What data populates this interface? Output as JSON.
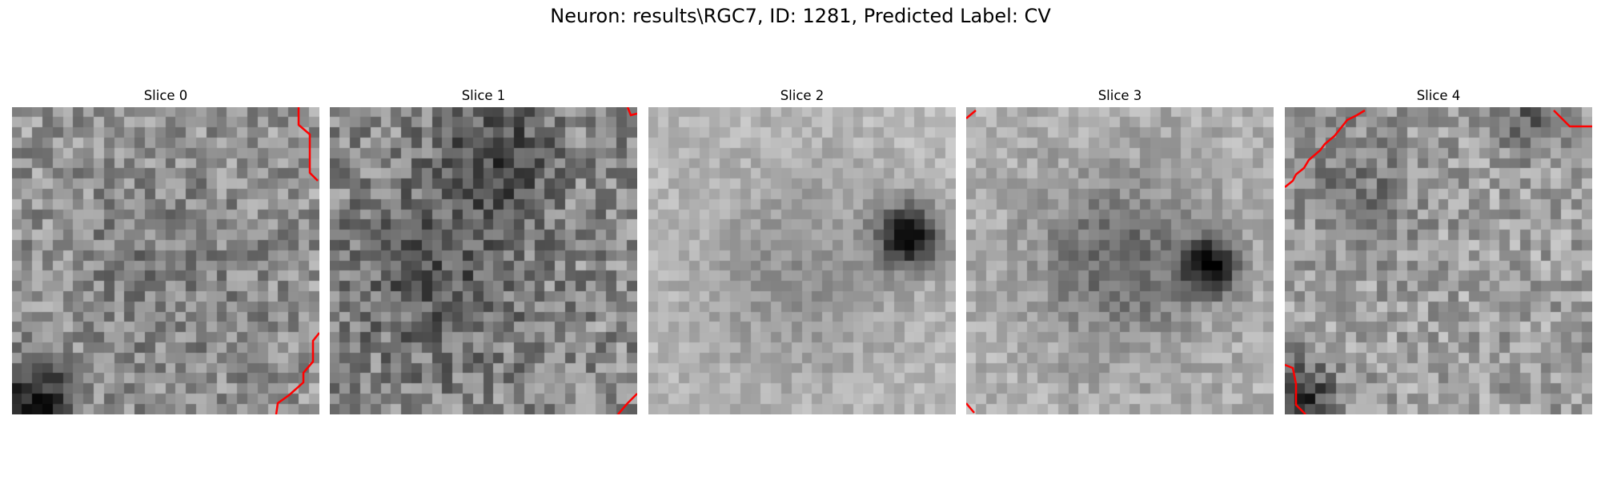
{
  "title": "Neuron: results\\RGC7, ID: 1281, Predicted Label: CV",
  "panels": [
    {
      "label": "Slice 0"
    },
    {
      "label": "Slice 1"
    },
    {
      "label": "Slice 2"
    },
    {
      "label": "Slice 3"
    },
    {
      "label": "Slice 4"
    }
  ],
  "colors": {
    "contour": "#ff0000"
  }
}
